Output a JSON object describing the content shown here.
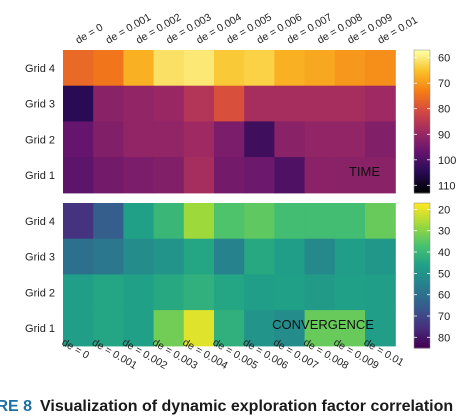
{
  "chart_data": [
    {
      "type": "heatmap",
      "panel_label": "TIME",
      "x_labels": [
        "de = 0",
        "de = 0.001",
        "de = 0.002",
        "de = 0.003",
        "de = 0.004",
        "de = 0.005",
        "de = 0.006",
        "de = 0.007",
        "de = 0.008",
        "de = 0.009",
        "de = 0.01"
      ],
      "y_labels": [
        "Grid 4",
        "Grid 3",
        "Grid 2",
        "Grid 1"
      ],
      "values": [
        [
          76,
          74,
          67,
          61,
          60,
          64,
          63,
          67,
          68,
          70,
          71
        ],
        [
          105,
          92,
          91,
          90,
          86,
          80,
          88,
          88,
          88,
          88,
          89
        ],
        [
          97,
          93,
          91,
          91,
          89,
          94,
          102,
          92,
          91,
          91,
          93
        ],
        [
          98,
          95,
          94,
          93,
          88,
          95,
          96,
          100,
          92,
          92,
          92
        ]
      ],
      "colorbar": {
        "ticks": [
          60,
          70,
          80,
          90,
          100,
          110
        ],
        "range": [
          57,
          113
        ],
        "scale": "inferno",
        "reversed": true
      }
    },
    {
      "type": "heatmap",
      "panel_label": "CONVERGENCE",
      "x_labels": [
        "de = 0",
        "de = 0.001",
        "de = 0.002",
        "de = 0.003",
        "de = 0.004",
        "de = 0.005",
        "de = 0.006",
        "de = 0.007",
        "de = 0.008",
        "de = 0.009",
        "de = 0.01"
      ],
      "y_labels": [
        "Grid 4",
        "Grid 3",
        "Grid 2",
        "Grid 1"
      ],
      "values": [
        [
          75,
          65,
          46,
          40,
          27,
          36,
          34,
          38,
          38,
          38,
          33
        ],
        [
          60,
          58,
          52,
          50,
          45,
          55,
          44,
          47,
          53,
          47,
          49
        ],
        [
          47,
          45,
          46,
          44,
          42,
          45,
          47,
          46,
          48,
          46,
          47
        ],
        [
          47,
          45,
          46,
          32,
          20,
          42,
          50,
          52,
          33,
          33,
          47
        ]
      ],
      "colorbar": {
        "ticks": [
          20,
          30,
          40,
          50,
          60,
          70,
          80
        ],
        "range": [
          17,
          85
        ],
        "scale": "viridis",
        "reversed": true
      }
    }
  ],
  "caption": {
    "label": "IRE 8",
    "text": "Visualization of dynamic exploration factor correlation"
  }
}
